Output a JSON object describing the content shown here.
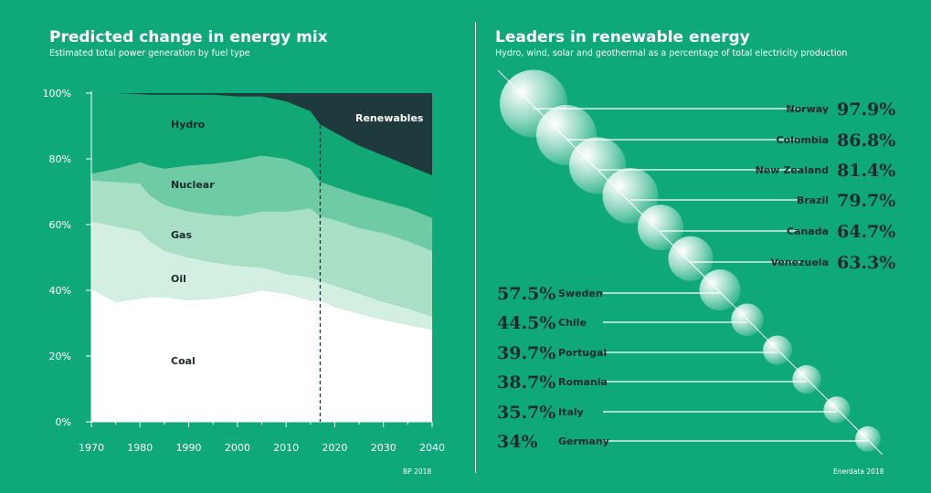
{
  "left": {
    "title": "Predicted change in energy mix",
    "subtitle": "Estimated total power generation by fuel type",
    "source": "BP 2018"
  },
  "right": {
    "title": "Leaders in renewable energy",
    "subtitle": "Hydro, wind, solar and geothermal as a percentage of total electricity production",
    "source": "Enerdata 2018"
  },
  "colors": {
    "background": "#0fa878",
    "renewables": "#1e3a3d",
    "hydro": "#12a876",
    "nuclear": "#6fcba4",
    "gas": "#a8dfc5",
    "oil": "#d3efe2",
    "coal": "#ffffff",
    "text_dark": "#1c2b2e"
  },
  "chart_data": [
    {
      "type": "area",
      "stacked": true,
      "x": [
        1970,
        1975,
        1980,
        1982,
        1985,
        1990,
        1995,
        2000,
        2005,
        2010,
        2015,
        2017,
        2020,
        2025,
        2030,
        2035,
        2040
      ],
      "xticks": [
        "1970",
        "1980",
        "1990",
        "2000",
        "2010",
        "2020",
        "2030",
        "2040"
      ],
      "yticks": [
        "0%",
        "20%",
        "40%",
        "60%",
        "80%",
        "100%"
      ],
      "ylim": [
        0,
        100
      ],
      "xlim": [
        1970,
        2040
      ],
      "forecast_start": 2017,
      "grid": false,
      "series": [
        {
          "name": "Coal",
          "values": [
            40.5,
            36.5,
            37.5,
            38,
            38,
            37,
            37.5,
            38.5,
            40,
            39,
            37,
            37,
            35,
            33,
            31,
            29.5,
            28
          ]
        },
        {
          "name": "Oil",
          "values": [
            20.5,
            23,
            20.5,
            17,
            14,
            13,
            11,
            9,
            7,
            6,
            7,
            6,
            6.5,
            6,
            5.5,
            5,
            4
          ]
        },
        {
          "name": "Gas",
          "values": [
            12.5,
            13.5,
            14.5,
            14,
            14,
            14,
            14.5,
            15,
            17,
            19,
            21,
            19.5,
            20,
            20,
            21,
            20.5,
            20
          ]
        },
        {
          "name": "Nuclear",
          "values": [
            2,
            4,
            6.5,
            9,
            11,
            14,
            15.5,
            17,
            17,
            16,
            12,
            10.5,
            10,
            10,
            9.5,
            10,
            10
          ]
        },
        {
          "name": "Hydro",
          "values": [
            24.5,
            23,
            20.7,
            21.5,
            22.5,
            21.5,
            21,
            19.5,
            18,
            17.5,
            17.5,
            17.5,
            16.5,
            15,
            14,
            13,
            13
          ]
        },
        {
          "name": "Renewables",
          "values": [
            0,
            0,
            0.3,
            0.5,
            0.5,
            0.5,
            0.5,
            1,
            1,
            2.5,
            5.5,
            9.5,
            12,
            16,
            19,
            22,
            25
          ]
        }
      ],
      "labels": {
        "coal": "Coal",
        "oil": "Oil",
        "gas": "Gas",
        "nuclear": "Nuclear",
        "hydro": "Hydro",
        "renewables": "Renewables"
      }
    },
    {
      "type": "bubble",
      "unit": "%",
      "items": [
        {
          "country": "Norway",
          "value": 97.9,
          "label": "97.9%"
        },
        {
          "country": "Colombia",
          "value": 86.8,
          "label": "86.8%"
        },
        {
          "country": "New Zealand",
          "value": 81.4,
          "label": "81.4%"
        },
        {
          "country": "Brazil",
          "value": 79.7,
          "label": "79.7%"
        },
        {
          "country": "Canada",
          "value": 64.7,
          "label": "64.7%"
        },
        {
          "country": "Venezuela",
          "value": 63.3,
          "label": "63.3%"
        },
        {
          "country": "Sweden",
          "value": 57.5,
          "label": "57.5%"
        },
        {
          "country": "Chile",
          "value": 44.5,
          "label": "44.5%"
        },
        {
          "country": "Portugal",
          "value": 39.7,
          "label": "39.7%"
        },
        {
          "country": "Romania",
          "value": 38.7,
          "label": "38.7%"
        },
        {
          "country": "Italy",
          "value": 35.7,
          "label": "35.7%"
        },
        {
          "country": "Germany",
          "value": 34,
          "label": "34%"
        }
      ]
    }
  ]
}
